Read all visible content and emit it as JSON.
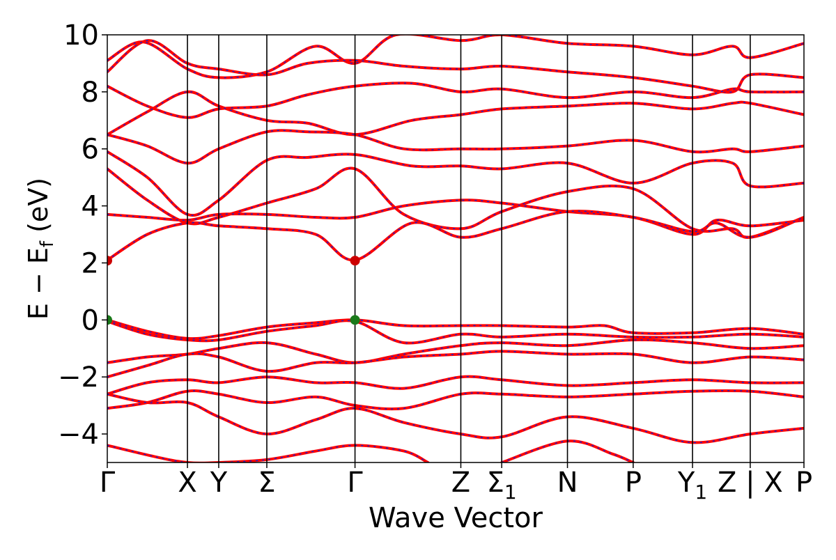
{
  "chart_data": {
    "type": "line",
    "title": "",
    "xlabel": "Wave Vector",
    "ylabel_parts": {
      "main": "E − E",
      "sub": "f",
      "unit": " (eV)"
    },
    "ylim": [
      -5,
      10
    ],
    "yticks": [
      -4,
      -2,
      0,
      2,
      4,
      6,
      8,
      10
    ],
    "ytick_labels": [
      "−4",
      "−2",
      "0",
      "2",
      "4",
      "6",
      "8",
      "10"
    ],
    "grid": false,
    "high_symmetry_points": [
      {
        "label": "Γ",
        "sub": "",
        "x": 0.0
      },
      {
        "label": "X",
        "sub": "",
        "x": 1.0
      },
      {
        "label": "Y",
        "sub": "",
        "x": 1.39
      },
      {
        "label": "Σ",
        "sub": "",
        "x": 1.99
      },
      {
        "label": "Γ",
        "sub": "",
        "x": 3.09
      },
      {
        "label": "Z",
        "sub": "",
        "x": 4.41
      },
      {
        "label": "Σ",
        "sub": "1",
        "x": 4.92
      },
      {
        "label": "N",
        "sub": "",
        "x": 5.74
      },
      {
        "label": "P",
        "sub": "",
        "x": 6.56
      },
      {
        "label": "Y",
        "sub": "1",
        "x": 7.3
      },
      {
        "label": "Z | X",
        "sub": "",
        "x": 8.02
      },
      {
        "label": "P",
        "sub": "",
        "x": 8.69
      }
    ],
    "xlim": [
      0,
      8.69
    ],
    "series": [
      {
        "color": "#ff0000",
        "style": "solid",
        "points": [
          [
            0,
            9.1
          ],
          [
            0.45,
            9.75
          ],
          [
            1.0,
            8.8
          ],
          [
            1.39,
            8.5
          ],
          [
            1.99,
            8.7
          ],
          [
            2.6,
            9.6
          ],
          [
            3.09,
            9.0
          ],
          [
            3.6,
            10.0
          ],
          [
            4.41,
            9.8
          ],
          [
            4.92,
            10.0
          ],
          [
            5.74,
            9.7
          ],
          [
            6.56,
            9.6
          ],
          [
            7.3,
            9.3
          ],
          [
            7.8,
            9.6
          ],
          [
            8.02,
            9.2
          ],
          [
            8.69,
            9.7
          ]
        ]
      },
      {
        "color": "#ff0000",
        "style": "solid",
        "points": [
          [
            0,
            8.7
          ],
          [
            0.5,
            9.8
          ],
          [
            1.0,
            9.0
          ],
          [
            1.39,
            8.8
          ],
          [
            1.99,
            8.6
          ],
          [
            2.5,
            9.0
          ],
          [
            3.09,
            9.1
          ],
          [
            3.7,
            8.9
          ],
          [
            4.41,
            8.8
          ],
          [
            4.92,
            8.9
          ],
          [
            5.74,
            8.7
          ],
          [
            6.56,
            8.5
          ],
          [
            7.3,
            8.2
          ],
          [
            7.8,
            8.0
          ],
          [
            8.02,
            8.6
          ],
          [
            8.69,
            8.5
          ]
        ]
      },
      {
        "color": "#ff0000",
        "style": "solid",
        "points": [
          [
            0,
            8.2
          ],
          [
            0.5,
            7.5
          ],
          [
            1.0,
            7.1
          ],
          [
            1.39,
            7.4
          ],
          [
            1.99,
            7.5
          ],
          [
            2.5,
            7.9
          ],
          [
            3.09,
            8.2
          ],
          [
            3.8,
            8.3
          ],
          [
            4.41,
            8.0
          ],
          [
            4.92,
            8.1
          ],
          [
            5.74,
            7.8
          ],
          [
            6.56,
            8.0
          ],
          [
            7.3,
            7.8
          ],
          [
            7.8,
            8.1
          ],
          [
            8.02,
            8.0
          ],
          [
            8.69,
            8.0
          ]
        ]
      },
      {
        "color": "#ff0000",
        "style": "solid",
        "points": [
          [
            0,
            6.5
          ],
          [
            0.5,
            7.3
          ],
          [
            1.0,
            8.0
          ],
          [
            1.39,
            7.5
          ],
          [
            1.99,
            7.0
          ],
          [
            2.5,
            6.9
          ],
          [
            3.09,
            6.5
          ],
          [
            3.8,
            7.0
          ],
          [
            4.41,
            7.2
          ],
          [
            4.92,
            7.4
          ],
          [
            5.74,
            7.5
          ],
          [
            6.56,
            7.6
          ],
          [
            7.3,
            7.4
          ],
          [
            7.8,
            7.6
          ],
          [
            8.02,
            7.6
          ],
          [
            8.69,
            7.2
          ]
        ]
      },
      {
        "color": "#ff0000",
        "style": "solid",
        "points": [
          [
            0,
            6.5
          ],
          [
            0.5,
            6.1
          ],
          [
            1.0,
            5.5
          ],
          [
            1.39,
            6.0
          ],
          [
            1.99,
            6.6
          ],
          [
            2.5,
            6.6
          ],
          [
            3.09,
            6.5
          ],
          [
            3.7,
            6.0
          ],
          [
            4.41,
            6.0
          ],
          [
            4.92,
            6.0
          ],
          [
            5.74,
            6.1
          ],
          [
            6.56,
            6.3
          ],
          [
            7.3,
            5.9
          ],
          [
            7.8,
            6.0
          ],
          [
            8.02,
            5.9
          ],
          [
            8.69,
            6.1
          ]
        ]
      },
      {
        "color": "#ff0000",
        "style": "solid",
        "points": [
          [
            0,
            5.9
          ],
          [
            0.5,
            5.0
          ],
          [
            1.0,
            3.7
          ],
          [
            1.39,
            4.2
          ],
          [
            1.99,
            5.6
          ],
          [
            2.5,
            5.7
          ],
          [
            3.09,
            5.8
          ],
          [
            3.8,
            5.4
          ],
          [
            4.41,
            5.4
          ],
          [
            4.92,
            5.3
          ],
          [
            5.74,
            5.5
          ],
          [
            6.56,
            4.8
          ],
          [
            7.3,
            5.5
          ],
          [
            7.8,
            5.5
          ],
          [
            8.02,
            4.7
          ],
          [
            8.69,
            4.8
          ]
        ]
      },
      {
        "color": "#ff0000",
        "style": "solid",
        "points": [
          [
            0,
            5.3
          ],
          [
            0.5,
            4.2
          ],
          [
            1.0,
            3.4
          ],
          [
            1.39,
            3.6
          ],
          [
            1.99,
            4.1
          ],
          [
            2.6,
            4.6
          ],
          [
            3.09,
            5.3
          ],
          [
            3.7,
            3.7
          ],
          [
            4.41,
            3.2
          ],
          [
            4.92,
            3.8
          ],
          [
            5.74,
            4.5
          ],
          [
            6.56,
            4.6
          ],
          [
            7.3,
            3.2
          ],
          [
            7.8,
            3.2
          ],
          [
            8.02,
            2.9
          ],
          [
            8.69,
            3.6
          ]
        ]
      },
      {
        "color": "#ff0000",
        "style": "solid",
        "points": [
          [
            0,
            3.7
          ],
          [
            0.5,
            3.6
          ],
          [
            1.0,
            3.5
          ],
          [
            1.39,
            3.7
          ],
          [
            1.99,
            3.7
          ],
          [
            2.6,
            3.6
          ],
          [
            3.09,
            3.6
          ],
          [
            3.7,
            4.0
          ],
          [
            4.41,
            4.2
          ],
          [
            4.92,
            4.1
          ],
          [
            5.74,
            3.8
          ],
          [
            6.56,
            3.6
          ],
          [
            7.3,
            3.0
          ],
          [
            7.6,
            3.5
          ],
          [
            8.02,
            3.3
          ],
          [
            8.69,
            3.5
          ]
        ]
      },
      {
        "color": "#ff0000",
        "style": "solid",
        "points": [
          [
            0,
            2.1
          ],
          [
            0.5,
            3.0
          ],
          [
            1.0,
            3.4
          ],
          [
            1.39,
            3.3
          ],
          [
            1.99,
            3.2
          ],
          [
            2.6,
            3.0
          ],
          [
            3.09,
            2.1
          ],
          [
            3.8,
            3.4
          ],
          [
            4.41,
            2.9
          ],
          [
            4.92,
            3.2
          ],
          [
            5.74,
            3.8
          ],
          [
            6.56,
            3.6
          ],
          [
            7.3,
            3.1
          ],
          [
            7.6,
            3.4
          ],
          [
            8.02,
            2.9
          ],
          [
            8.69,
            3.6
          ]
        ]
      },
      {
        "color": "#ff0000",
        "style": "solid",
        "points": [
          [
            0,
            0.0
          ],
          [
            0.5,
            -0.4
          ],
          [
            1.0,
            -0.65
          ],
          [
            1.39,
            -0.55
          ],
          [
            1.99,
            -0.25
          ],
          [
            2.6,
            -0.1
          ],
          [
            3.09,
            0.0
          ],
          [
            3.7,
            -0.2
          ],
          [
            4.41,
            -0.2
          ],
          [
            4.92,
            -0.2
          ],
          [
            5.74,
            -0.25
          ],
          [
            6.2,
            -0.2
          ],
          [
            6.56,
            -0.45
          ],
          [
            7.3,
            -0.45
          ],
          [
            8.02,
            -0.3
          ],
          [
            8.69,
            -0.5
          ]
        ]
      },
      {
        "color": "#ff0000",
        "style": "solid",
        "points": [
          [
            0,
            -0.05
          ],
          [
            0.5,
            -0.5
          ],
          [
            1.0,
            -0.7
          ],
          [
            1.39,
            -0.7
          ],
          [
            1.99,
            -0.4
          ],
          [
            2.6,
            -0.2
          ],
          [
            3.09,
            -0.05
          ],
          [
            3.7,
            -0.8
          ],
          [
            4.41,
            -0.5
          ],
          [
            4.92,
            -0.6
          ],
          [
            5.74,
            -0.5
          ],
          [
            6.56,
            -0.6
          ],
          [
            7.3,
            -0.6
          ],
          [
            8.02,
            -0.5
          ],
          [
            8.69,
            -0.6
          ]
        ]
      },
      {
        "color": "#ff0000",
        "style": "solid",
        "points": [
          [
            0,
            -1.5
          ],
          [
            0.5,
            -1.3
          ],
          [
            1.0,
            -1.2
          ],
          [
            1.39,
            -1.0
          ],
          [
            1.99,
            -0.8
          ],
          [
            2.6,
            -1.2
          ],
          [
            3.09,
            -1.5
          ],
          [
            3.7,
            -1.2
          ],
          [
            4.41,
            -0.9
          ],
          [
            4.92,
            -0.8
          ],
          [
            5.74,
            -0.9
          ],
          [
            6.56,
            -0.7
          ],
          [
            7.3,
            -0.8
          ],
          [
            8.02,
            -1.0
          ],
          [
            8.69,
            -0.9
          ]
        ]
      },
      {
        "color": "#ff0000",
        "style": "solid",
        "points": [
          [
            0,
            -2.0
          ],
          [
            0.5,
            -1.6
          ],
          [
            1.0,
            -1.2
          ],
          [
            1.39,
            -1.3
          ],
          [
            1.99,
            -1.8
          ],
          [
            2.6,
            -1.5
          ],
          [
            3.09,
            -1.5
          ],
          [
            3.7,
            -1.3
          ],
          [
            4.41,
            -1.2
          ],
          [
            4.92,
            -1.1
          ],
          [
            5.74,
            -1.2
          ],
          [
            6.56,
            -1.2
          ],
          [
            7.3,
            -1.5
          ],
          [
            8.02,
            -1.3
          ],
          [
            8.69,
            -1.4
          ]
        ]
      },
      {
        "color": "#ff0000",
        "style": "solid",
        "points": [
          [
            0,
            -2.6
          ],
          [
            0.5,
            -2.2
          ],
          [
            1.0,
            -2.1
          ],
          [
            1.39,
            -2.2
          ],
          [
            1.99,
            -2.0
          ],
          [
            2.6,
            -2.2
          ],
          [
            3.09,
            -2.2
          ],
          [
            3.7,
            -2.4
          ],
          [
            4.41,
            -2.0
          ],
          [
            4.92,
            -2.1
          ],
          [
            5.74,
            -2.3
          ],
          [
            6.56,
            -2.2
          ],
          [
            7.3,
            -2.1
          ],
          [
            8.02,
            -2.2
          ],
          [
            8.69,
            -2.2
          ]
        ]
      },
      {
        "color": "#ff0000",
        "style": "solid",
        "points": [
          [
            0,
            -3.1
          ],
          [
            0.5,
            -2.9
          ],
          [
            1.0,
            -2.5
          ],
          [
            1.39,
            -2.6
          ],
          [
            1.99,
            -2.9
          ],
          [
            2.6,
            -2.7
          ],
          [
            3.09,
            -3.0
          ],
          [
            3.7,
            -3.1
          ],
          [
            4.41,
            -2.6
          ],
          [
            4.92,
            -2.6
          ],
          [
            5.74,
            -2.7
          ],
          [
            6.56,
            -2.6
          ],
          [
            7.3,
            -2.5
          ],
          [
            8.02,
            -2.5
          ],
          [
            8.69,
            -2.7
          ]
        ]
      },
      {
        "color": "#ff0000",
        "style": "solid",
        "points": [
          [
            0,
            -2.6
          ],
          [
            0.5,
            -2.9
          ],
          [
            1.0,
            -2.9
          ],
          [
            1.39,
            -3.4
          ],
          [
            1.99,
            -4.0
          ],
          [
            2.6,
            -3.5
          ],
          [
            3.09,
            -3.1
          ],
          [
            3.7,
            -3.6
          ],
          [
            4.41,
            -4.0
          ],
          [
            4.92,
            -4.1
          ],
          [
            5.74,
            -3.4
          ],
          [
            6.56,
            -3.8
          ],
          [
            7.3,
            -4.3
          ],
          [
            8.02,
            -4.0
          ],
          [
            8.69,
            -3.8
          ]
        ]
      },
      {
        "color": "#ff0000",
        "style": "solid",
        "points": [
          [
            0,
            -4.4
          ],
          [
            0.6,
            -4.8
          ],
          [
            1.0,
            -5.0
          ],
          [
            1.39,
            -5.0
          ],
          [
            1.99,
            -4.9
          ],
          [
            2.6,
            -4.6
          ],
          [
            3.09,
            -4.4
          ],
          [
            3.7,
            -4.6
          ],
          [
            4.0,
            -5.0
          ]
        ]
      },
      {
        "color": "#ff0000",
        "style": "solid",
        "points": [
          [
            4.92,
            -5.0
          ],
          [
            5.74,
            -4.25
          ],
          [
            6.3,
            -4.7
          ],
          [
            6.56,
            -5.0
          ]
        ]
      }
    ],
    "markers": [
      {
        "x": 0,
        "y": 2.08,
        "color": "#cc0000"
      },
      {
        "x": 3.09,
        "y": 2.08,
        "color": "#cc0000"
      },
      {
        "x": 0,
        "y": 0.0,
        "color": "#1a7a1a"
      },
      {
        "x": 3.09,
        "y": 0.0,
        "color": "#1a7a1a"
      }
    ],
    "dash_overlay_color": "#1f1fcc",
    "line_color": "#ff0000"
  }
}
